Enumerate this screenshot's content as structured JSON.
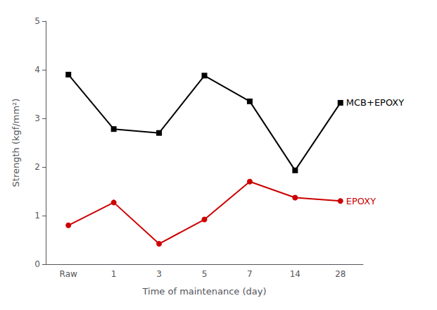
{
  "chart_data": {
    "type": "line",
    "categories": [
      "Raw",
      "1",
      "3",
      "5",
      "7",
      "14",
      "28"
    ],
    "xlabel": "Time of maintenance (day)",
    "ylabel": "Strength (kgf/mm²)",
    "series": [
      {
        "annotation": "MCB+EPOXY",
        "color": "#000000",
        "marker": "square",
        "values": [
          3.9,
          2.78,
          2.7,
          3.88,
          3.35,
          1.93,
          3.32
        ]
      },
      {
        "annotation": "EPOXY",
        "color": "#cc0000",
        "marker": "circle",
        "values": [
          0.8,
          1.27,
          0.42,
          0.92,
          1.7,
          1.37,
          1.3
        ]
      }
    ],
    "ylim": [
      0,
      5
    ],
    "yticks": [
      0,
      1,
      2,
      3,
      4,
      5
    ],
    "grid": false
  }
}
